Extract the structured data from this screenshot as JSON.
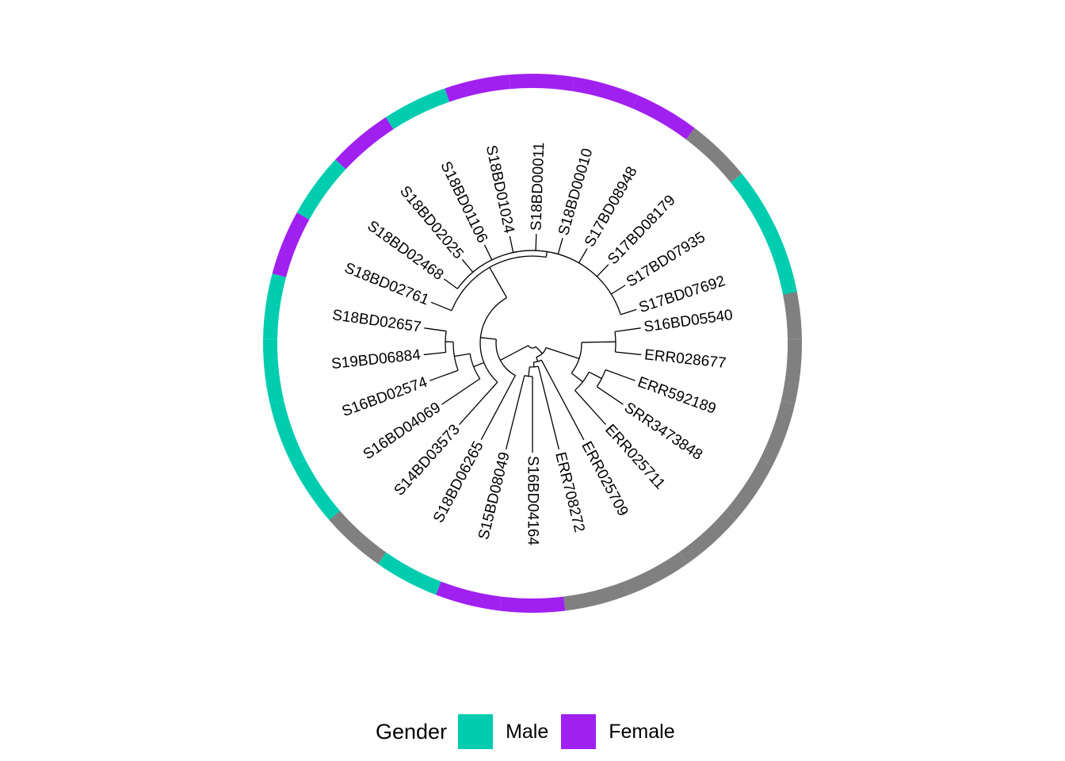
{
  "tree": {
    "tips": [
      {
        "label": "S16BD05540",
        "gender": "Other"
      },
      {
        "label": "ERR028677",
        "gender": "Other"
      },
      {
        "label": "ERR592189",
        "gender": "Other"
      },
      {
        "label": "SRR3473848",
        "gender": "Other"
      },
      {
        "label": "ERR025711",
        "gender": "Other"
      },
      {
        "label": "ERR025709",
        "gender": "Other"
      },
      {
        "label": "ERR708272",
        "gender": "Other"
      },
      {
        "label": "S16BD04164",
        "gender": "Female"
      },
      {
        "label": "S15BD08049",
        "gender": "Female"
      },
      {
        "label": "S18BD06265",
        "gender": "Male"
      },
      {
        "label": "S14BD03573",
        "gender": "Other"
      },
      {
        "label": "S16BD04069",
        "gender": "Male"
      },
      {
        "label": "S16BD02574",
        "gender": "Male"
      },
      {
        "label": "S19BD06884",
        "gender": "Male"
      },
      {
        "label": "S18BD02657",
        "gender": "Male"
      },
      {
        "label": "S18BD02761",
        "gender": "Female"
      },
      {
        "label": "S18BD02468",
        "gender": "Male"
      },
      {
        "label": "S18BD02025",
        "gender": "Female"
      },
      {
        "label": "S18BD01106",
        "gender": "Male"
      },
      {
        "label": "S18BD01024",
        "gender": "Female"
      },
      {
        "label": "S18BD00011",
        "gender": "Female"
      },
      {
        "label": "S18BD00010",
        "gender": "Female"
      },
      {
        "label": "S17BD08948",
        "gender": "Female"
      },
      {
        "label": "S17BD08179",
        "gender": "Other"
      },
      {
        "label": "S17BD07935",
        "gender": "Male"
      },
      {
        "label": "S17BD07692",
        "gender": "Male"
      }
    ]
  },
  "colors": {
    "Male": "#00CDB0",
    "Female": "#A020F0",
    "Other": "#808080",
    "branch": "#000000"
  },
  "legend": {
    "title": "Gender",
    "items": [
      {
        "label": "Male",
        "color": "#00CDB0"
      },
      {
        "label": "Female",
        "color": "#A020F0"
      }
    ]
  }
}
